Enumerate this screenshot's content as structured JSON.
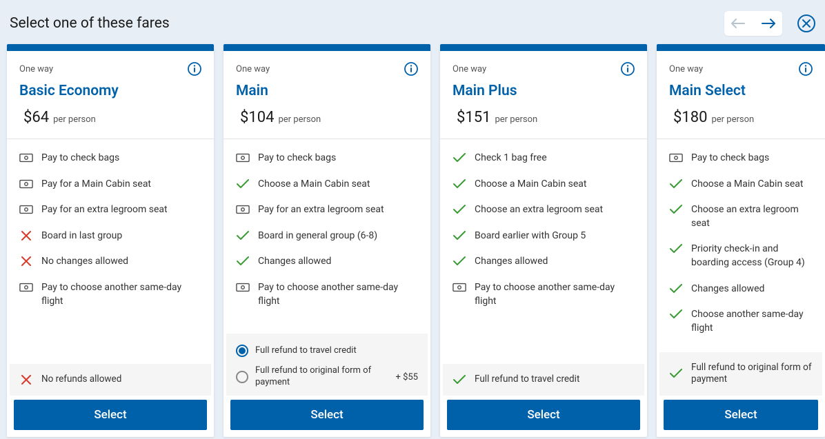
{
  "header": {
    "title": "Select one of these fares"
  },
  "colors": {
    "brand": "#0061ab",
    "pageBg": "#e8eef6",
    "cardBg": "#ffffff",
    "textMuted": "#555",
    "check": "#3a9b35",
    "x": "#d93a2b",
    "iconGray": "#4a4a4a",
    "refundBg": "#f5f5f5"
  },
  "fares": [
    {
      "tripType": "One way",
      "name": "Basic Economy",
      "price": "$64",
      "per": "per person",
      "features": [
        {
          "icon": "dollar",
          "text": "Pay to check bags"
        },
        {
          "icon": "dollar",
          "text": "Pay for a Main Cabin seat"
        },
        {
          "icon": "dollar",
          "text": "Pay for an extra legroom seat"
        },
        {
          "icon": "x",
          "text": "Board in last group"
        },
        {
          "icon": "x",
          "text": "No changes allowed"
        },
        {
          "icon": "dollar",
          "text": "Pay to choose another same-day flight"
        }
      ],
      "refund": {
        "type": "single",
        "icon": "x",
        "text": "No refunds allowed"
      },
      "selectLabel": "Select"
    },
    {
      "tripType": "One way",
      "name": "Main",
      "price": "$104",
      "per": "per person",
      "features": [
        {
          "icon": "dollar",
          "text": "Pay to check bags"
        },
        {
          "icon": "check",
          "text": "Choose a Main Cabin seat"
        },
        {
          "icon": "dollar",
          "text": "Pay for an extra legroom seat"
        },
        {
          "icon": "check",
          "text": "Board in general group (6-8)"
        },
        {
          "icon": "check",
          "text": "Changes allowed"
        },
        {
          "icon": "dollar",
          "text": "Pay to choose another same-day flight"
        }
      ],
      "refund": {
        "type": "options",
        "options": [
          {
            "label": "Full refund to travel credit",
            "selected": true,
            "extra": ""
          },
          {
            "label": "Full refund to original form of payment",
            "selected": false,
            "extra": "+ $55"
          }
        ]
      },
      "selectLabel": "Select"
    },
    {
      "tripType": "One way",
      "name": "Main Plus",
      "price": "$151",
      "per": "per person",
      "features": [
        {
          "icon": "check",
          "text": "Check 1 bag free"
        },
        {
          "icon": "check",
          "text": "Choose a Main Cabin seat"
        },
        {
          "icon": "check",
          "text": "Choose an extra legroom seat"
        },
        {
          "icon": "check",
          "text": "Board earlier with Group 5"
        },
        {
          "icon": "check",
          "text": "Changes allowed"
        },
        {
          "icon": "dollar",
          "text": "Pay to choose another same-day flight"
        }
      ],
      "refund": {
        "type": "single",
        "icon": "check",
        "text": "Full refund to travel credit"
      },
      "selectLabel": "Select"
    },
    {
      "tripType": "One way",
      "name": "Main Select",
      "price": "$180",
      "per": "per person",
      "features": [
        {
          "icon": "dollar",
          "text": "Pay to check bags"
        },
        {
          "icon": "check",
          "text": "Choose a Main Cabin seat"
        },
        {
          "icon": "check",
          "text": "Choose an extra legroom seat"
        },
        {
          "icon": "check",
          "text": "Priority check-in and boarding access (Group 4)"
        },
        {
          "icon": "check",
          "text": "Changes allowed"
        },
        {
          "icon": "check",
          "text": "Choose another same-day flight"
        }
      ],
      "refund": {
        "type": "single",
        "icon": "check",
        "text": "Full refund to original form of payment"
      },
      "selectLabel": "Select"
    }
  ]
}
